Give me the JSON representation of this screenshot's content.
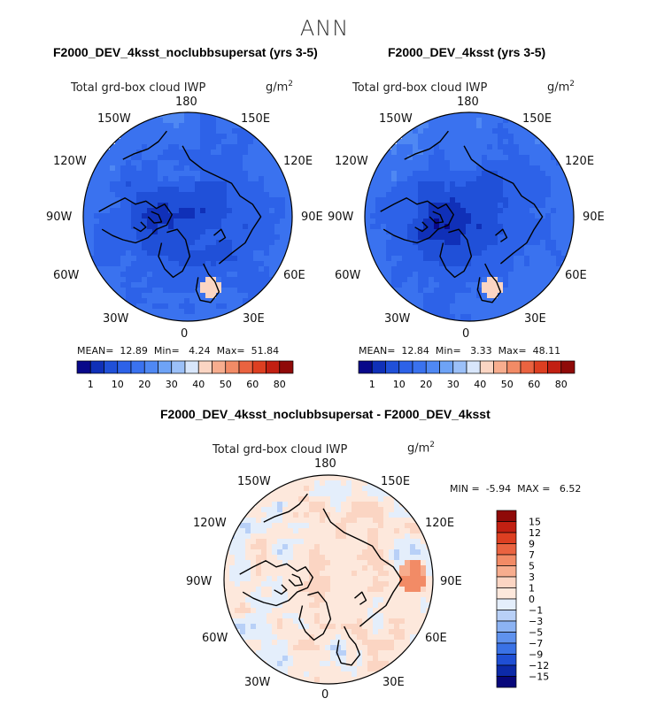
{
  "season": "ANN",
  "units_main": "g/m",
  "units_exp": "2",
  "panels": [
    {
      "title": "F2000_DEV_4ksst_noclubbsupersat (yrs 3-5)",
      "variable": "Total grd-box cloud IWP",
      "stats": {
        "mean_label": "MEAN=",
        "mean": "12.89",
        "min_label": "Min=",
        "min": "4.24",
        "max_label": "Max=",
        "max": "51.84"
      }
    },
    {
      "title": "F2000_DEV_4ksst (yrs 3-5)",
      "variable": "Total grd-box cloud IWP",
      "stats": {
        "mean_label": "MEAN=",
        "mean": "12.84",
        "min_label": "Min=",
        "min": "3.33",
        "max_label": "Max=",
        "max": "48.11"
      }
    }
  ],
  "diff": {
    "title": "F2000_DEV_4ksst_noclubbsupersat - F2000_DEV_4ksst",
    "variable": "Total grd-box cloud IWP",
    "min_label": "MIN =",
    "min": "-5.94",
    "max_label": "MAX =",
    "max": "6.52"
  },
  "longitude_labels": {
    "top": "180",
    "bottom": "0",
    "ul1": "150W",
    "ul2": "120W",
    "l": "90W",
    "ll1": "60W",
    "ll2": "30W",
    "ur1": "150E",
    "ur2": "120E",
    "r": "90E",
    "lr1": "60E",
    "lr2": "30E"
  },
  "chart_data": [
    {
      "type": "heatmap",
      "projection": "north polar stereographic",
      "title": "F2000_DEV_4ksst_noclubbsupersat (yrs 3-5)",
      "variable": "Total grd-box cloud IWP",
      "units": "g/m2",
      "mean": 12.89,
      "min": 4.24,
      "max": 51.84,
      "colorbar_levels": [
        1,
        5,
        10,
        15,
        20,
        25,
        30,
        35,
        40,
        45,
        50,
        55,
        60,
        70,
        80
      ],
      "colorbar_tick_labels": [
        "1",
        "10",
        "20",
        "30",
        "40",
        "50",
        "60",
        "80"
      ],
      "colors": [
        "#08088a",
        "#1030b8",
        "#2050d8",
        "#2d62e8",
        "#3a72ef",
        "#4f88f3",
        "#6ea3f6",
        "#9bc0f8",
        "#d8e6fb",
        "#fbd5c3",
        "#f7ad8e",
        "#f28b66",
        "#ea6340",
        "#dd3f21",
        "#c22012",
        "#8f0a08"
      ]
    },
    {
      "type": "heatmap",
      "projection": "north polar stereographic",
      "title": "F2000_DEV_4ksst (yrs 3-5)",
      "variable": "Total grd-box cloud IWP",
      "units": "g/m2",
      "mean": 12.84,
      "min": 3.33,
      "max": 48.11,
      "colorbar_levels": [
        1,
        5,
        10,
        15,
        20,
        25,
        30,
        35,
        40,
        45,
        50,
        55,
        60,
        70,
        80
      ],
      "colorbar_tick_labels": [
        "1",
        "10",
        "20",
        "30",
        "40",
        "50",
        "60",
        "80"
      ],
      "colors": [
        "#08088a",
        "#1030b8",
        "#2050d8",
        "#2d62e8",
        "#3a72ef",
        "#4f88f3",
        "#6ea3f6",
        "#9bc0f8",
        "#d8e6fb",
        "#fbd5c3",
        "#f7ad8e",
        "#f28b66",
        "#ea6340",
        "#dd3f21",
        "#c22012",
        "#8f0a08"
      ]
    },
    {
      "type": "heatmap",
      "projection": "north polar stereographic",
      "title": "F2000_DEV_4ksst_noclubbsupersat - F2000_DEV_4ksst",
      "variable": "Total grd-box cloud IWP",
      "units": "g/m2",
      "min": -5.94,
      "max": 6.52,
      "colorbar_tick_labels": [
        "15",
        "12",
        "9",
        "7",
        "5",
        "3",
        "1",
        "0",
        "−1",
        "−3",
        "−5",
        "−7",
        "−9",
        "−12",
        "−15"
      ],
      "colors": [
        "#8f0a08",
        "#c22012",
        "#dd3f21",
        "#ea6340",
        "#f28b66",
        "#f7ad8e",
        "#fbd5c3",
        "#fde8dc",
        "#e4eefb",
        "#b8d0f7",
        "#8cb3f3",
        "#5f92ee",
        "#3a72e6",
        "#1f4fd4",
        "#0c2aa8",
        "#07077a"
      ]
    }
  ]
}
